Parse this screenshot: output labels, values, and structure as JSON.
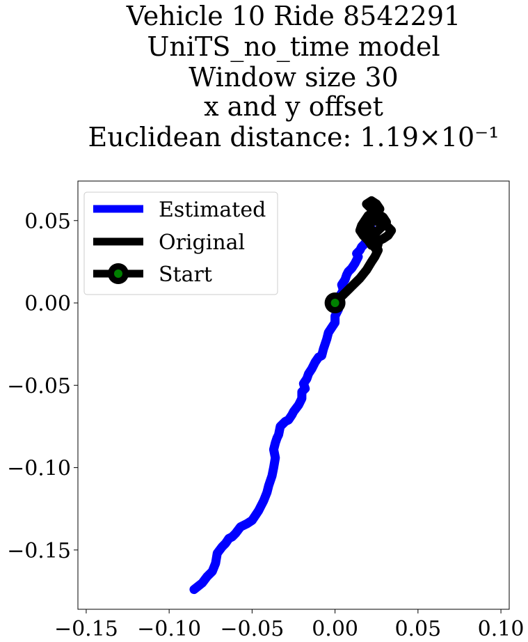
{
  "chart_data": {
    "type": "line",
    "title_lines": [
      "Vehicle 10 Ride 8542291",
      "UniTS_no_time model",
      "Window size 30",
      "x and y offset",
      "Euclidean distance: 1.19×10⁻¹"
    ],
    "xlim": [
      -0.155,
      0.105
    ],
    "ylim": [
      -0.186,
      0.074
    ],
    "x_ticks": [
      -0.15,
      -0.1,
      -0.05,
      0.0,
      0.05,
      0.1
    ],
    "x_tick_labels": [
      "−0.15",
      "−0.10",
      "−0.05",
      "0.00",
      "0.05",
      "0.10"
    ],
    "y_ticks": [
      0.05,
      0.0,
      -0.05,
      -0.1,
      -0.15
    ],
    "y_tick_labels": [
      "0.05",
      "0.00",
      "−0.05",
      "−0.10",
      "−0.15"
    ],
    "legend_position": "top-left",
    "series": [
      {
        "name": "Estimated",
        "color": "#0000ff",
        "x": [
          -0.085,
          -0.08,
          -0.077,
          -0.074,
          -0.072,
          -0.071,
          -0.068,
          -0.066,
          -0.064,
          -0.062,
          -0.06,
          -0.057,
          -0.053,
          -0.05,
          -0.048,
          -0.046,
          -0.043,
          -0.041,
          -0.04,
          -0.038,
          -0.037,
          -0.036,
          -0.037,
          -0.036,
          -0.035,
          -0.034,
          -0.033,
          -0.031,
          -0.03,
          -0.028,
          -0.026,
          -0.025,
          -0.022,
          -0.02,
          -0.02,
          -0.018,
          -0.019,
          -0.017,
          -0.016,
          -0.014,
          -0.012,
          -0.01,
          -0.008,
          -0.007,
          -0.006,
          -0.005,
          -0.004,
          -0.002,
          0.0,
          0.0,
          0.002,
          0.003,
          0.002,
          0.004,
          0.005,
          0.004,
          0.006,
          0.007,
          0.008,
          0.01,
          0.012,
          0.013,
          0.014,
          0.013,
          0.015,
          0.016,
          0.018,
          0.02,
          0.022
        ],
        "y": [
          -0.174,
          -0.17,
          -0.166,
          -0.163,
          -0.158,
          -0.152,
          -0.148,
          -0.146,
          -0.143,
          -0.142,
          -0.14,
          -0.136,
          -0.134,
          -0.132,
          -0.129,
          -0.126,
          -0.12,
          -0.115,
          -0.111,
          -0.105,
          -0.1,
          -0.094,
          -0.089,
          -0.085,
          -0.082,
          -0.08,
          -0.075,
          -0.073,
          -0.072,
          -0.071,
          -0.068,
          -0.066,
          -0.062,
          -0.058,
          -0.054,
          -0.052,
          -0.049,
          -0.046,
          -0.043,
          -0.04,
          -0.036,
          -0.033,
          -0.032,
          -0.028,
          -0.025,
          -0.022,
          -0.018,
          -0.015,
          -0.012,
          -0.008,
          -0.004,
          0.0,
          0.003,
          0.006,
          0.008,
          0.011,
          0.014,
          0.017,
          0.019,
          0.021,
          0.024,
          0.026,
          0.028,
          0.03,
          0.032,
          0.034,
          0.036,
          0.04,
          0.045
        ]
      },
      {
        "name": "Original",
        "color": "#000000",
        "x": [
          0.0,
          0.005,
          0.01,
          0.015,
          0.019,
          0.022,
          0.024,
          0.026,
          0.024,
          0.021,
          0.018,
          0.02,
          0.023,
          0.027,
          0.031,
          0.034,
          0.032,
          0.029,
          0.025,
          0.022,
          0.02,
          0.024,
          0.028,
          0.031,
          0.029,
          0.026,
          0.023,
          0.021,
          0.019,
          0.022,
          0.025,
          0.027,
          0.023,
          0.02,
          0.018,
          0.016,
          0.015,
          0.017,
          0.02,
          0.023,
          0.025,
          0.026,
          0.024,
          0.022,
          0.02,
          0.018
        ],
        "y": [
          0.0,
          0.005,
          0.01,
          0.015,
          0.02,
          0.025,
          0.028,
          0.032,
          0.036,
          0.04,
          0.044,
          0.048,
          0.05,
          0.049,
          0.047,
          0.044,
          0.041,
          0.039,
          0.037,
          0.035,
          0.038,
          0.042,
          0.046,
          0.049,
          0.052,
          0.054,
          0.056,
          0.058,
          0.06,
          0.062,
          0.06,
          0.057,
          0.055,
          0.053,
          0.05,
          0.047,
          0.044,
          0.041,
          0.038,
          0.035,
          0.032,
          0.036,
          0.04,
          0.044,
          0.048,
          0.045
        ]
      },
      {
        "name": "Start",
        "color": "#000000",
        "marker_face_color": "#008000",
        "x": [
          0.0
        ],
        "y": [
          0.0
        ]
      }
    ]
  }
}
